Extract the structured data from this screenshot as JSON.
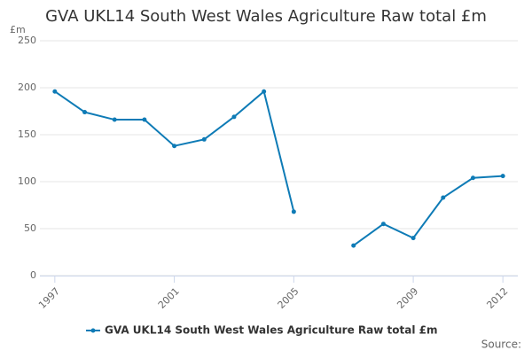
{
  "chart_data": {
    "type": "line",
    "title": "GVA UKL14 South West Wales Agriculture Raw total £m",
    "y_label": "£m",
    "source": "Source:",
    "x": [
      1997,
      1998,
      1999,
      2000,
      2001,
      2002,
      2003,
      2004,
      2005,
      2006,
      2007,
      2008,
      2009,
      2010,
      2011,
      2012
    ],
    "series": [
      {
        "name": "GVA UKL14 South West Wales Agriculture Raw total £m",
        "color": "#0e7bb6",
        "values": [
          196,
          174,
          166,
          166,
          138,
          145,
          169,
          196,
          68,
          null,
          32,
          55,
          40,
          83,
          104,
          106
        ]
      }
    ],
    "xlim": [
      1996.5,
      2012.5
    ],
    "xticks": [
      1997,
      2001,
      2005,
      2009,
      2012
    ],
    "ylim": [
      0,
      250
    ],
    "yticks": [
      0,
      50,
      100,
      150,
      200,
      250
    ],
    "grid": true,
    "legend": "bottom"
  }
}
